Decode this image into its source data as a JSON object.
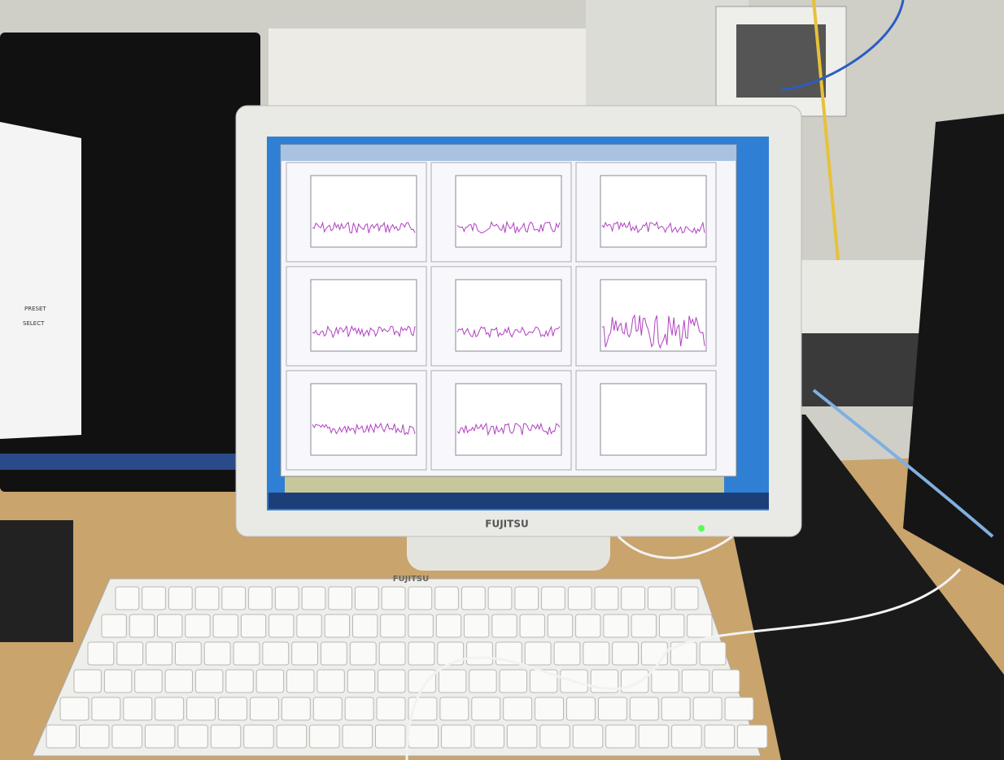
{
  "monitor_brand": "FUJITSU",
  "keyboard_brand": "FUJITSU",
  "left_screen": {
    "buttons": [
      "PRESET",
      "SELECT"
    ]
  }
}
